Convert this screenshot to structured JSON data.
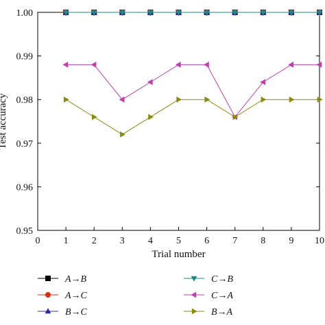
{
  "chart_data": {
    "type": "line",
    "xlabel": "Trial number",
    "ylabel": "Test accuracy",
    "xlim": [
      0,
      10
    ],
    "ylim": [
      0.95,
      1.0
    ],
    "x_ticks": [
      "0",
      "1",
      "2",
      "3",
      "4",
      "5",
      "6",
      "7",
      "8",
      "9",
      "10"
    ],
    "y_ticks": [
      "0.95",
      "0.96",
      "0.97",
      "0.98",
      "0.99",
      "1.00"
    ],
    "grid": false,
    "legend_position": "bottom",
    "x": [
      1,
      2,
      3,
      4,
      5,
      6,
      7,
      8,
      9,
      10
    ],
    "series": [
      {
        "name": "A→B",
        "marker": "square",
        "color": "#000000",
        "values": [
          1.0,
          1.0,
          1.0,
          1.0,
          1.0,
          1.0,
          1.0,
          1.0,
          1.0,
          1.0
        ]
      },
      {
        "name": "A→C",
        "marker": "circle",
        "color": "#d62e0f",
        "values": [
          1.0,
          1.0,
          1.0,
          1.0,
          1.0,
          1.0,
          1.0,
          1.0,
          1.0,
          1.0
        ]
      },
      {
        "name": "B→C",
        "marker": "triangle-up",
        "color": "#2b2ba0",
        "values": [
          1.0,
          1.0,
          1.0,
          1.0,
          1.0,
          1.0,
          1.0,
          1.0,
          1.0,
          1.0
        ]
      },
      {
        "name": "C→B",
        "marker": "triangle-down",
        "color": "#1a8a8a",
        "values": [
          1.0,
          1.0,
          1.0,
          1.0,
          1.0,
          1.0,
          1.0,
          1.0,
          1.0,
          1.0
        ]
      },
      {
        "name": "C→A",
        "marker": "triangle-left",
        "color": "#c03fb0",
        "values": [
          0.988,
          0.988,
          0.98,
          0.984,
          0.988,
          0.988,
          0.976,
          0.984,
          0.988,
          0.988
        ]
      },
      {
        "name": "B→A",
        "marker": "triangle-right",
        "color": "#8a8a12",
        "values": [
          0.98,
          0.976,
          0.972,
          0.976,
          0.98,
          0.98,
          0.976,
          0.98,
          0.98,
          0.98
        ]
      }
    ]
  }
}
